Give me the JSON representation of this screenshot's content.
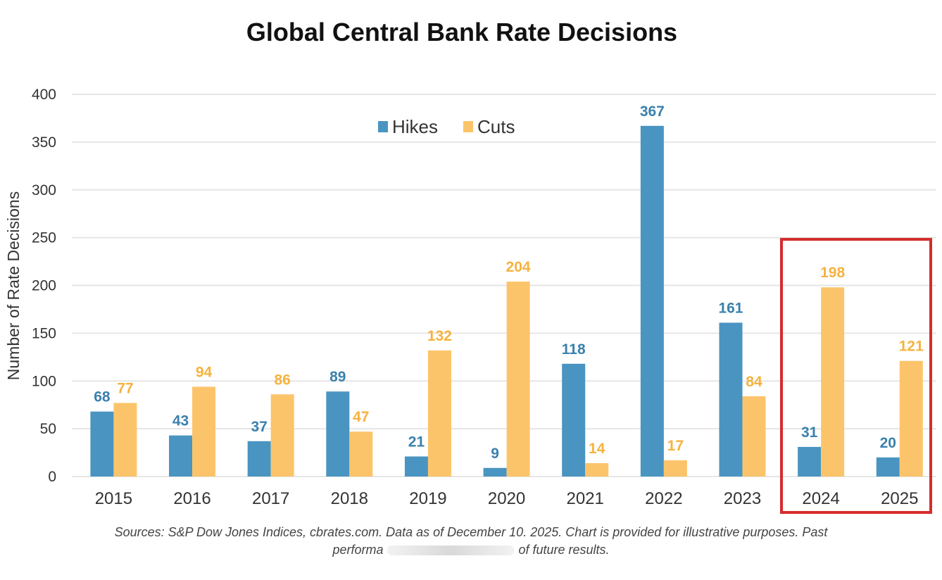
{
  "colors": {
    "hikes": "#4a94c2",
    "cuts": "#fcc46a",
    "grid": "#e6e6e6",
    "highlight": "#d62c2c"
  },
  "chart_data": {
    "type": "bar",
    "title": "Global Central Bank Rate Decisions",
    "xlabel": "",
    "ylabel": "Number of Rate Decisions",
    "ylim": [
      0,
      400
    ],
    "yticks": [
      0,
      50,
      100,
      150,
      200,
      250,
      300,
      350,
      400
    ],
    "grid": true,
    "legend_position": "top-center",
    "categories": [
      "2015",
      "2016",
      "2017",
      "2018",
      "2019",
      "2020",
      "2021",
      "2022",
      "2023",
      "2024",
      "2025"
    ],
    "series": [
      {
        "name": "Hikes",
        "values": [
          68,
          43,
          37,
          89,
          21,
          9,
          118,
          367,
          161,
          31,
          20
        ]
      },
      {
        "name": "Cuts",
        "values": [
          77,
          94,
          86,
          47,
          132,
          204,
          14,
          17,
          84,
          198,
          121
        ]
      }
    ],
    "annotation": "Red box highlighting 2024 and 2025"
  },
  "source_line1": "Sources: S&P Dow Jones Indices, cbrates.com. Data as of December 10. 2025. Chart is provided for illustrative purposes. Past",
  "source_line2_start": "performa",
  "source_line2_end": "of future results."
}
